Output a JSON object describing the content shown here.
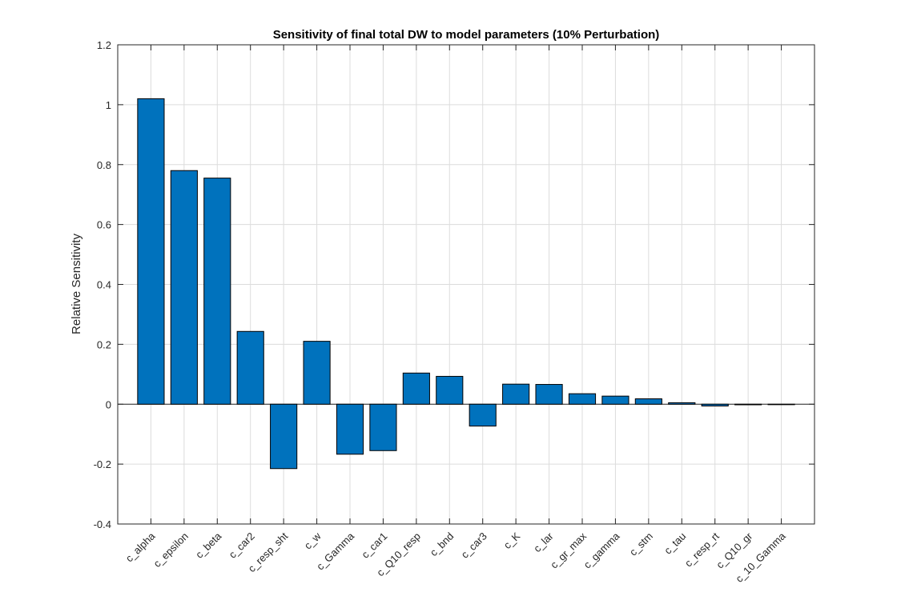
{
  "chart_data": {
    "type": "bar",
    "title": "Sensitivity of final total DW to model parameters (10% Perturbation)",
    "xlabel": "",
    "ylabel": "Relative Sensitivity",
    "ylim": [
      -0.4,
      1.2
    ],
    "yticks": [
      -0.4,
      -0.2,
      0,
      0.2,
      0.4,
      0.6,
      0.8,
      1,
      1.2
    ],
    "ytick_labels": [
      "-0.4",
      "-0.2",
      "0",
      "0.2",
      "0.4",
      "0.6",
      "0.8",
      "1",
      "1.2"
    ],
    "grid": true,
    "bar_color": "#0072BD",
    "categories": [
      "c_alpha",
      "c_epsilon",
      "c_beta",
      "c_car2",
      "c_resp_sht",
      "c_w",
      "c_Gamma",
      "c_car1",
      "c_Q10_resp",
      "c_bnd",
      "c_car3",
      "c_K",
      "c_lar",
      "c_gr_max",
      "c_gamma",
      "c_stm",
      "c_tau",
      "c_resp_rt",
      "c_Q10_gr",
      "c_10_Gamma"
    ],
    "values": [
      1.02,
      0.78,
      0.755,
      0.243,
      -0.215,
      0.21,
      -0.167,
      -0.155,
      0.104,
      0.093,
      -0.073,
      0.067,
      0.066,
      0.035,
      0.027,
      0.018,
      0.005,
      -0.006,
      -0.002,
      -0.001
    ]
  }
}
